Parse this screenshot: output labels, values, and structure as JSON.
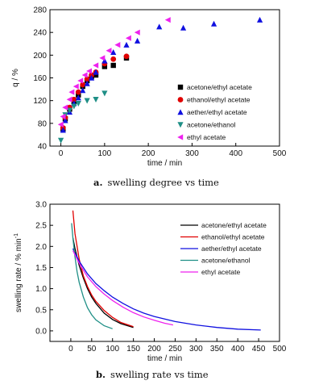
{
  "chart_data": [
    {
      "type": "scatter",
      "caption_letter": "a.",
      "caption_text": "swelling degree vs time",
      "xlabel": "time / min",
      "ylabel": "q / %",
      "xlim": [
        -25,
        500
      ],
      "ylim": [
        40,
        280
      ],
      "xticks": [
        0,
        100,
        200,
        300,
        400,
        500
      ],
      "yticks": [
        40,
        80,
        120,
        160,
        200,
        240,
        280
      ],
      "legend_position": "right-center",
      "series": [
        {
          "name": "acetone/ethyl acetate",
          "marker": "square",
          "color": "#000000",
          "x": [
            5,
            10,
            20,
            30,
            40,
            50,
            60,
            70,
            80,
            100,
            120,
            150
          ],
          "y": [
            70,
            88,
            105,
            118,
            130,
            145,
            155,
            162,
            165,
            180,
            182,
            195
          ]
        },
        {
          "name": "ethanol/ethyl acetate",
          "marker": "circle",
          "color": "#e00000",
          "x": [
            5,
            10,
            20,
            30,
            40,
            50,
            60,
            70,
            80,
            100,
            120,
            150
          ],
          "y": [
            72,
            90,
            108,
            122,
            135,
            148,
            158,
            165,
            170,
            185,
            193,
            198
          ]
        },
        {
          "name": "aether/ethyl acetate",
          "marker": "triangle-up",
          "color": "#1010e0",
          "x": [
            5,
            10,
            20,
            30,
            40,
            50,
            60,
            70,
            80,
            100,
            120,
            150,
            175,
            225,
            280,
            350,
            455
          ],
          "y": [
            68,
            85,
            100,
            115,
            125,
            138,
            150,
            160,
            170,
            190,
            205,
            218,
            225,
            250,
            248,
            255,
            262
          ]
        },
        {
          "name": "acetone/ethanol",
          "marker": "triangle-down",
          "color": "#1f8f86",
          "x": [
            0,
            10,
            20,
            30,
            40,
            60,
            80,
            100
          ],
          "y": [
            50,
            95,
            103,
            110,
            115,
            120,
            122,
            133
          ]
        },
        {
          "name": "ethyl acetate",
          "marker": "triangle-left",
          "color": "#ee22ee",
          "x": [
            0,
            5,
            10,
            20,
            25,
            35,
            45,
            55,
            65,
            80,
            95,
            110,
            130,
            155,
            175,
            245
          ],
          "y": [
            78,
            92,
            108,
            122,
            135,
            145,
            155,
            165,
            172,
            182,
            195,
            208,
            218,
            230,
            240,
            262
          ]
        }
      ]
    },
    {
      "type": "line",
      "caption_letter": "b.",
      "caption_text": "swelling rate vs time",
      "xlabel": "time / min",
      "ylabel": "swelling rate / % min",
      "ylabel_sup": "-1",
      "xlim": [
        -50,
        500
      ],
      "ylim": [
        -0.25,
        3.0
      ],
      "xticks": [
        0,
        50,
        100,
        150,
        200,
        250,
        300,
        350,
        400,
        450,
        500
      ],
      "yticks": [
        0.0,
        0.5,
        1.0,
        1.5,
        2.0,
        2.5,
        3.0
      ],
      "ytick_labels": [
        "0.0",
        "0.5",
        "1.0",
        "1.5",
        "2.0",
        "2.5",
        "3.0"
      ],
      "legend_position": "top-right",
      "series": [
        {
          "name": "acetone/ethyl acetate",
          "color": "#000000",
          "x": [
            5,
            10,
            20,
            30,
            40,
            50,
            60,
            80,
            100,
            120,
            150
          ],
          "y": [
            2.2,
            1.95,
            1.55,
            1.25,
            1.0,
            0.8,
            0.65,
            0.42,
            0.27,
            0.17,
            0.08
          ]
        },
        {
          "name": "ethanol/ethyl acetate",
          "color": "#e00000",
          "x": [
            5,
            10,
            20,
            30,
            40,
            50,
            60,
            80,
            100,
            120,
            150
          ],
          "y": [
            2.85,
            2.3,
            1.7,
            1.3,
            1.05,
            0.85,
            0.7,
            0.48,
            0.32,
            0.2,
            0.1
          ]
        },
        {
          "name": "aether/ethyl acetate",
          "color": "#1010e0",
          "x": [
            5,
            20,
            40,
            60,
            80,
            100,
            125,
            150,
            175,
            200,
            250,
            300,
            350,
            400,
            455
          ],
          "y": [
            1.95,
            1.65,
            1.35,
            1.12,
            0.95,
            0.8,
            0.65,
            0.52,
            0.42,
            0.34,
            0.22,
            0.14,
            0.08,
            0.04,
            0.02
          ]
        },
        {
          "name": "acetone/ethanol",
          "color": "#1f8f86",
          "x": [
            2,
            5,
            10,
            15,
            20,
            30,
            40,
            50,
            60,
            80,
            100
          ],
          "y": [
            2.55,
            2.2,
            1.75,
            1.4,
            1.15,
            0.8,
            0.55,
            0.38,
            0.26,
            0.12,
            0.05
          ]
        },
        {
          "name": "ethyl acetate",
          "color": "#ee22ee",
          "x": [
            5,
            20,
            40,
            60,
            80,
            100,
            125,
            150,
            175,
            200,
            225,
            245
          ],
          "y": [
            1.9,
            1.6,
            1.28,
            1.05,
            0.87,
            0.72,
            0.56,
            0.43,
            0.33,
            0.25,
            0.18,
            0.14
          ]
        }
      ]
    }
  ]
}
